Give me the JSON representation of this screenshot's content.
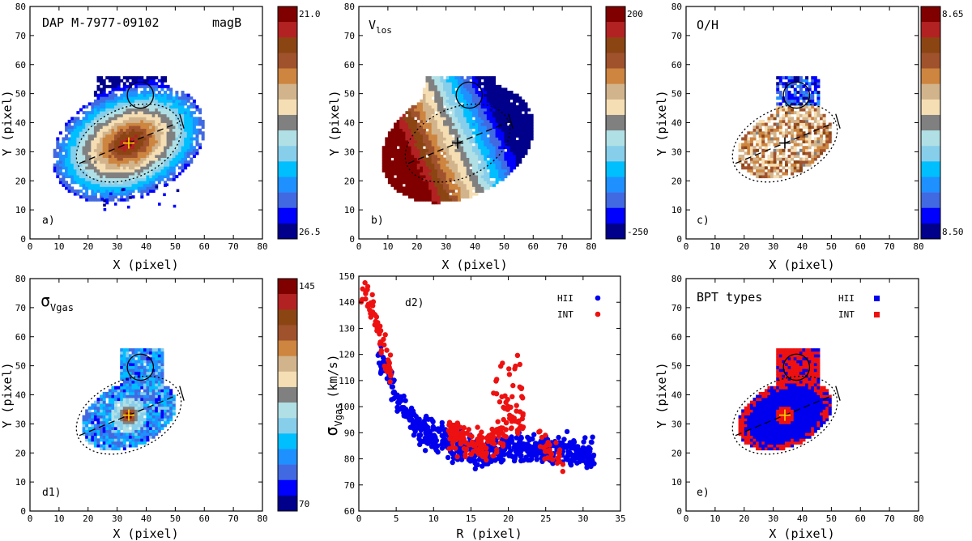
{
  "figure": {
    "panels": {
      "a": {
        "title": "DAP M-7977-09102",
        "title2": "magB",
        "letter": "a)",
        "cb_top": "21.0",
        "cb_bottom": "26.5"
      },
      "b": {
        "title": "V",
        "title_sub": "los",
        "letter": "b)",
        "cb_top": "200",
        "cb_bottom": "-250"
      },
      "c": {
        "title": "O/H",
        "letter": "c)",
        "cb_top": "8.65",
        "cb_bottom": "8.50"
      },
      "d1": {
        "title": "σ",
        "title_sub": "Vgas",
        "letter": "d1)",
        "cb_top": "145",
        "cb_bottom": "70"
      },
      "d2": {
        "letter": "d2)",
        "legend": [
          "HII",
          "INT"
        ]
      },
      "e": {
        "title": "BPT types",
        "letter": "e)",
        "legend": [
          "HII",
          "INT"
        ]
      }
    },
    "axis_labels": {
      "x_map": "X  (pixel)",
      "y_map": "Y  (pixel)",
      "x_scatter": "R  (pixel)",
      "y_scatter": "σ",
      "y_scatter_sub": "Vgas",
      "y_scatter_unit": "(km/s)"
    },
    "ticks": {
      "map_x": [
        "0",
        "10",
        "20",
        "30",
        "40",
        "50",
        "60",
        "70",
        "80"
      ],
      "map_y": [
        "0",
        "10",
        "20",
        "30",
        "40",
        "50",
        "60",
        "70",
        "80"
      ],
      "scatter_x": [
        "0",
        "5",
        "10",
        "15",
        "20",
        "25",
        "30",
        "35"
      ],
      "scatter_y": [
        "60",
        "70",
        "80",
        "90",
        "100",
        "110",
        "120",
        "130",
        "140",
        "150"
      ]
    },
    "colors": {
      "hii": "#0000ee",
      "int": "#ee1111",
      "colorbar": [
        "#800000",
        "#b22222",
        "#8b4513",
        "#a0522d",
        "#cd853f",
        "#d2b48c",
        "#f5deb3",
        "#808080",
        "#b0e0e6",
        "#87ceeb",
        "#00bfff",
        "#1e90ff",
        "#4169e1",
        "#0000ff",
        "#00008b"
      ]
    }
  },
  "chart_data": [
    {
      "type": "heatmap",
      "panel": "a",
      "title": "DAP M-7977-09102  magB",
      "xlabel": "X (pixel)",
      "ylabel": "Y (pixel)",
      "xlim": [
        0,
        80
      ],
      "ylim": [
        0,
        80
      ],
      "colorbar_range": [
        21.0,
        26.5
      ],
      "center": [
        34,
        33
      ]
    },
    {
      "type": "heatmap",
      "panel": "b",
      "title": "V_los",
      "xlabel": "X (pixel)",
      "ylabel": "Y (pixel)",
      "xlim": [
        0,
        80
      ],
      "ylim": [
        0,
        80
      ],
      "colorbar_range": [
        200,
        -250
      ],
      "center": [
        34,
        33
      ]
    },
    {
      "type": "heatmap",
      "panel": "c",
      "title": "O/H",
      "xlabel": "X (pixel)",
      "ylabel": "Y (pixel)",
      "xlim": [
        0,
        80
      ],
      "ylim": [
        0,
        80
      ],
      "colorbar_range": [
        8.65,
        8.5
      ],
      "center": [
        34,
        33
      ]
    },
    {
      "type": "heatmap",
      "panel": "d1",
      "title": "σ_Vgas",
      "xlabel": "X (pixel)",
      "ylabel": "Y (pixel)",
      "xlim": [
        0,
        80
      ],
      "ylim": [
        0,
        80
      ],
      "colorbar_range": [
        145,
        70
      ],
      "center": [
        34,
        33
      ]
    },
    {
      "type": "scatter",
      "panel": "d2",
      "xlabel": "R (pixel)",
      "ylabel": "σ_Vgas (km/s)",
      "xlim": [
        0,
        35
      ],
      "ylim": [
        60,
        150
      ],
      "series": [
        {
          "name": "HII",
          "trend": [
            [
              3,
              118
            ],
            [
              5,
              104
            ],
            [
              8,
              92
            ],
            [
              12,
              86
            ],
            [
              16,
              82
            ],
            [
              20,
              84
            ],
            [
              25,
              84
            ],
            [
              30,
              82
            ]
          ],
          "x_range": [
            2.5,
            31.5
          ]
        },
        {
          "name": "INT",
          "trend": [
            [
              0.5,
              145
            ],
            [
              2,
              135
            ],
            [
              3,
              125
            ],
            [
              4,
              115
            ],
            [
              13,
              88
            ],
            [
              17,
              85
            ],
            [
              19,
              90
            ],
            [
              21,
              95
            ],
            [
              26,
              82
            ]
          ],
          "x_range": [
            0.3,
            27.5
          ]
        }
      ]
    },
    {
      "type": "heatmap",
      "panel": "e",
      "title": "BPT types",
      "xlabel": "X (pixel)",
      "ylabel": "Y (pixel)",
      "xlim": [
        0,
        80
      ],
      "ylim": [
        0,
        80
      ],
      "categories": [
        "HII",
        "INT"
      ],
      "center": [
        34,
        33
      ]
    }
  ]
}
